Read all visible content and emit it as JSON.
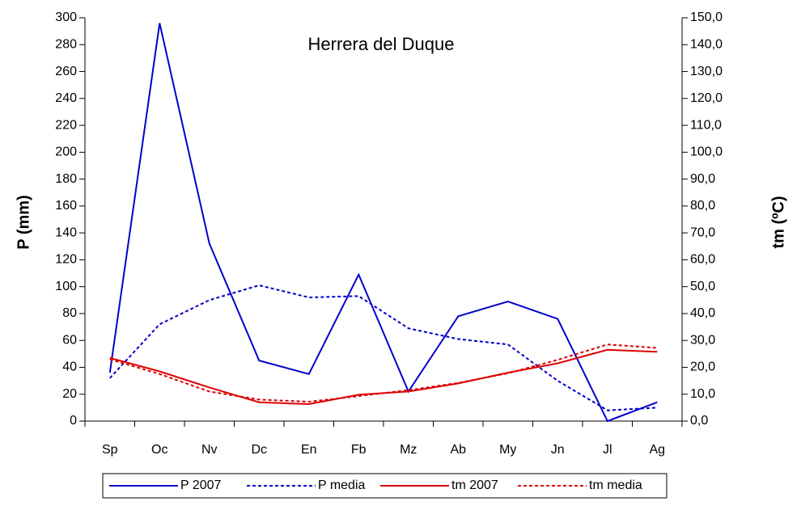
{
  "chart_data": {
    "type": "line",
    "title": "Herrera del Duque",
    "y_label": "P (mm)",
    "y2_label": "tm (ºC)",
    "categories": [
      "Sp",
      "Oc",
      "Nv",
      "Dc",
      "En",
      "Fb",
      "Mz",
      "Ab",
      "My",
      "Jn",
      "Jl",
      "Ag"
    ],
    "series": [
      {
        "name": "P 2007",
        "color": "#0000cc",
        "dashed": false,
        "values": [
          36,
          296,
          132,
          45,
          35,
          109,
          22,
          78,
          89,
          76,
          0,
          14
        ]
      },
      {
        "name": "P media",
        "color": "#0000cc",
        "dashed": true,
        "values": [
          32,
          72,
          90,
          101,
          92,
          93,
          69,
          61,
          57,
          30,
          8,
          10
        ]
      },
      {
        "name": "tm 2007",
        "color": "#dd0000",
        "dashed": false,
        "axis": "y2",
        "values": [
          23.5,
          18.5,
          12.5,
          7,
          6.3,
          9.8,
          11,
          14,
          18,
          21.5,
          26.5,
          25.8
        ]
      },
      {
        "name": "tm media",
        "color": "#dd0000",
        "dashed": true,
        "axis": "y2",
        "values": [
          23,
          17.5,
          11,
          8,
          7.2,
          9.3,
          11.5,
          14.2,
          17.8,
          22.8,
          28.5,
          27.2
        ]
      }
    ],
    "ylim": [
      0,
      300
    ],
    "yticks": [
      0,
      20,
      40,
      60,
      80,
      100,
      120,
      140,
      160,
      180,
      200,
      220,
      240,
      260,
      280,
      300
    ],
    "y2lim": [
      0,
      150
    ],
    "y2ticks": [
      {
        "value": 0,
        "label": "0,0"
      },
      {
        "value": 10,
        "label": "10,0"
      },
      {
        "value": 20,
        "label": "20,0"
      },
      {
        "value": 30,
        "label": "30,0"
      },
      {
        "value": 40,
        "label": "40,0"
      },
      {
        "value": 50,
        "label": "50,0"
      },
      {
        "value": 60,
        "label": "60,0"
      },
      {
        "value": 70,
        "label": "70,0"
      },
      {
        "value": 80,
        "label": "80,0"
      },
      {
        "value": 90,
        "label": "90,0"
      },
      {
        "value": 100,
        "label": "100,0"
      },
      {
        "value": 110,
        "label": "110,0"
      },
      {
        "value": 120,
        "label": "120,0"
      },
      {
        "value": 130,
        "label": "130,0"
      },
      {
        "value": 140,
        "label": "140,0"
      },
      {
        "value": 150,
        "label": "150,0"
      }
    ],
    "legend": "bottom"
  }
}
